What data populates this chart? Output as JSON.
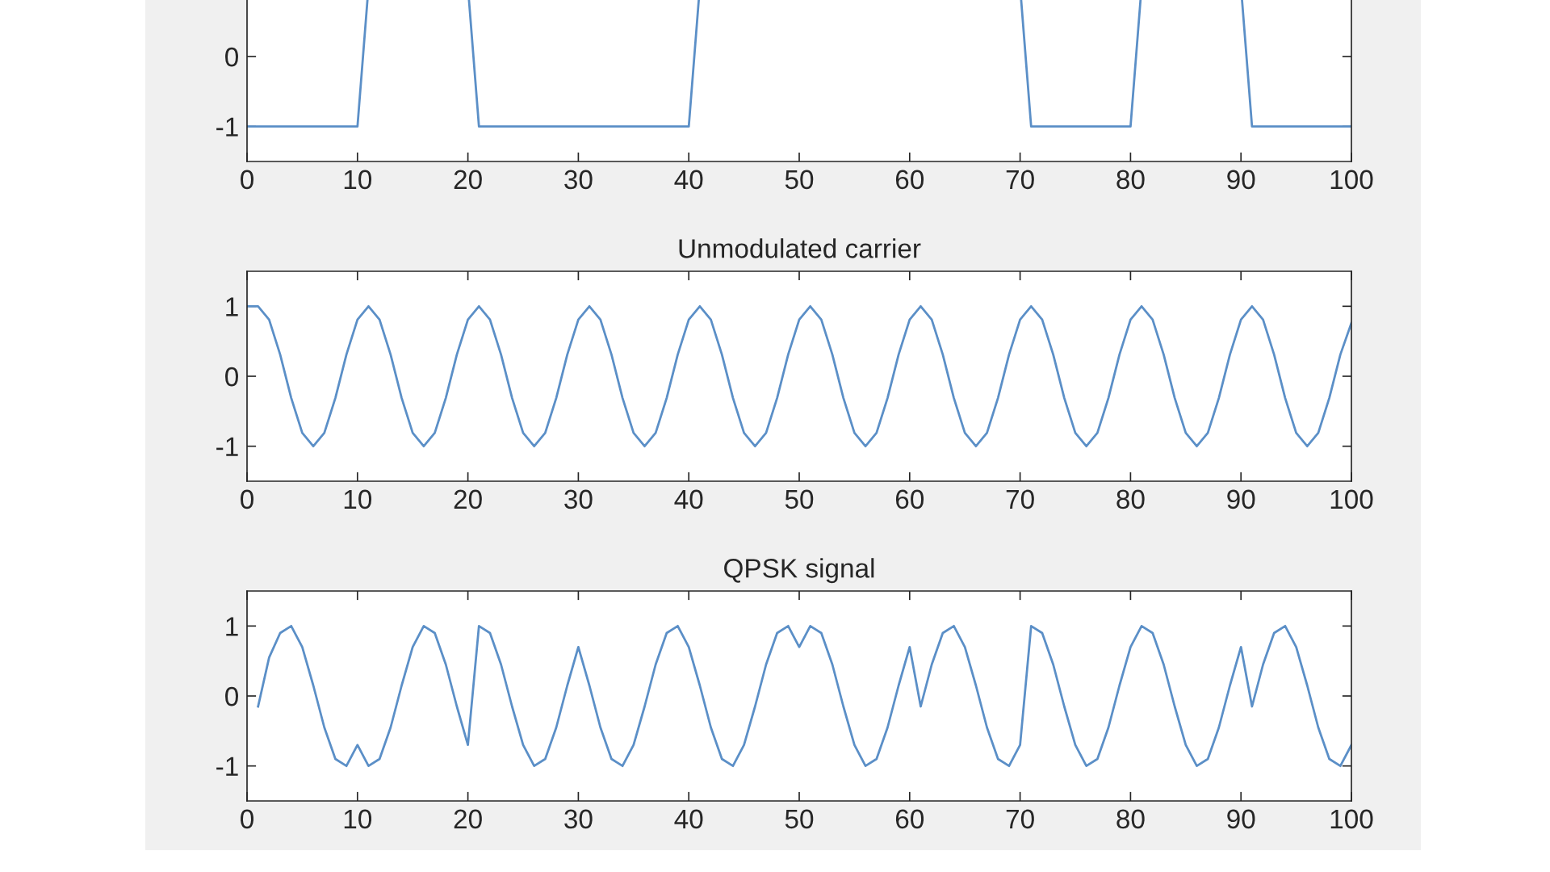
{
  "chart_data": [
    {
      "type": "line",
      "x": [
        0,
        10,
        10.92,
        11,
        20,
        20.08,
        21,
        40,
        40.92,
        41,
        70,
        70.08,
        71,
        80,
        80.92,
        81,
        90,
        90.08,
        91,
        100
      ],
      "xlim": [
        0,
        100
      ],
      "xticks": [
        0,
        10,
        20,
        30,
        40,
        50,
        60,
        70,
        80,
        90,
        100
      ],
      "ylim": [
        -1.5,
        1.5
      ],
      "yticks": [
        -1,
        0
      ],
      "series": [
        {
          "color": "#5b8fc7",
          "values": [
            -1,
            -1,
            0.84,
            null,
            null,
            0.84,
            -1,
            -1,
            0.84,
            null,
            null,
            0.84,
            -1,
            -1,
            0.84,
            null,
            null,
            0.84,
            -1,
            -1
          ]
        }
      ]
    },
    {
      "type": "line",
      "title": "Unmodulated carrier",
      "x": [
        0,
        1,
        2,
        3,
        4,
        5,
        6,
        7,
        8,
        9,
        10,
        11,
        12,
        13,
        14,
        15,
        16,
        17,
        18,
        19,
        20,
        21,
        22,
        23,
        24,
        25,
        26,
        27,
        28,
        29,
        30,
        31,
        32,
        33,
        34,
        35,
        36,
        37,
        38,
        39,
        40,
        41,
        42,
        43,
        44,
        45,
        46,
        47,
        48,
        49,
        50,
        51,
        52,
        53,
        54,
        55,
        56,
        57,
        58,
        59,
        60,
        61,
        62,
        63,
        64,
        65,
        66,
        67,
        68,
        69,
        70,
        71,
        72,
        73,
        74,
        75,
        76,
        77,
        78,
        79,
        80,
        81,
        82,
        83,
        84,
        85,
        86,
        87,
        88,
        89,
        90,
        91,
        92,
        93,
        94,
        95,
        96,
        97,
        98,
        99,
        100
      ],
      "xlim": [
        0,
        100
      ],
      "xticks": [
        0,
        10,
        20,
        30,
        40,
        50,
        60,
        70,
        80,
        90,
        100
      ],
      "ylim": [
        -1.5,
        1.5
      ],
      "yticks": [
        -1,
        0,
        1
      ],
      "series": [
        {
          "color": "#5b8fc7",
          "values": [
            1,
            1,
            0.81,
            0.31,
            -0.31,
            -0.81,
            -1,
            -0.81,
            -0.31,
            0.31,
            0.81,
            1,
            0.81,
            0.31,
            -0.31,
            -0.81,
            -1,
            -0.81,
            -0.31,
            0.31,
            0.81,
            1,
            0.81,
            0.31,
            -0.31,
            -0.81,
            -1,
            -0.81,
            -0.31,
            0.31,
            0.81,
            1,
            0.81,
            0.31,
            -0.31,
            -0.81,
            -1,
            -0.81,
            -0.31,
            0.31,
            0.81,
            1,
            0.81,
            0.31,
            -0.31,
            -0.81,
            -1,
            -0.81,
            -0.31,
            0.31,
            0.81,
            1,
            0.81,
            0.31,
            -0.31,
            -0.81,
            -1,
            -0.81,
            -0.31,
            0.31,
            0.81,
            1,
            0.81,
            0.31,
            -0.31,
            -0.81,
            -1,
            -0.81,
            -0.31,
            0.31,
            0.81,
            1,
            0.81,
            0.31,
            -0.31,
            -0.81,
            -1,
            -0.81,
            -0.31,
            0.31,
            0.81,
            1,
            0.81,
            0.31,
            -0.31,
            -0.81,
            -1,
            -0.81,
            -0.31,
            0.31,
            0.81,
            1,
            0.81,
            0.31,
            -0.31,
            -0.81,
            -1,
            -0.81,
            -0.31,
            0.31,
            0.76
          ]
        }
      ]
    },
    {
      "type": "line",
      "title": "QPSK signal",
      "x": [
        1,
        2,
        3,
        4,
        5,
        6,
        7,
        8,
        9,
        10,
        11,
        12,
        13,
        14,
        15,
        16,
        17,
        18,
        19,
        20,
        21,
        22,
        23,
        24,
        25,
        26,
        27,
        28,
        29,
        30,
        31,
        32,
        33,
        34,
        35,
        36,
        37,
        38,
        39,
        40,
        41,
        42,
        43,
        44,
        45,
        46,
        47,
        48,
        49,
        50,
        51,
        52,
        53,
        54,
        55,
        56,
        57,
        58,
        59,
        60,
        61,
        62,
        63,
        64,
        65,
        66,
        67,
        68,
        69,
        70,
        71,
        72,
        73,
        74,
        75,
        76,
        77,
        78,
        79,
        80,
        81,
        82,
        83,
        84,
        85,
        86,
        87,
        88,
        89,
        90,
        91,
        92,
        93,
        94,
        95,
        96,
        97,
        98,
        99,
        100
      ],
      "xlim": [
        0,
        100
      ],
      "xticks": [
        0,
        10,
        20,
        30,
        40,
        50,
        60,
        70,
        80,
        90,
        100
      ],
      "ylim": [
        -1.5,
        1.5
      ],
      "yticks": [
        -1,
        0,
        1
      ],
      "series": [
        {
          "color": "#5b8fc7",
          "values": [
            -0.15,
            0.55,
            0.9,
            1,
            0.7,
            0.15,
            -0.45,
            -0.9,
            -1,
            -0.7,
            -1,
            -0.9,
            -0.45,
            0.15,
            0.7,
            1,
            0.9,
            0.45,
            -0.15,
            -0.7,
            1,
            0.9,
            0.45,
            -0.15,
            -0.7,
            -1,
            -0.9,
            -0.45,
            0.15,
            0.7,
            0.15,
            -0.45,
            -0.9,
            -1,
            -0.7,
            -0.15,
            0.45,
            0.9,
            1,
            0.7,
            0.15,
            -0.45,
            -0.9,
            -1,
            -0.7,
            -0.15,
            0.45,
            0.9,
            1,
            0.7,
            1,
            0.9,
            0.45,
            -0.15,
            -0.7,
            -1,
            -0.9,
            -0.45,
            0.15,
            0.7,
            -0.15,
            0.45,
            0.9,
            1,
            0.7,
            0.15,
            -0.45,
            -0.9,
            -1,
            -0.7,
            1,
            0.9,
            0.45,
            -0.15,
            -0.7,
            -1,
            -0.9,
            -0.45,
            0.15,
            0.7,
            1,
            0.9,
            0.45,
            -0.15,
            -0.7,
            -1,
            -0.9,
            -0.45,
            0.15,
            0.7,
            -0.15,
            0.45,
            0.9,
            1,
            0.7,
            0.15,
            -0.45,
            -0.9,
            -1,
            -0.7
          ]
        }
      ]
    }
  ]
}
